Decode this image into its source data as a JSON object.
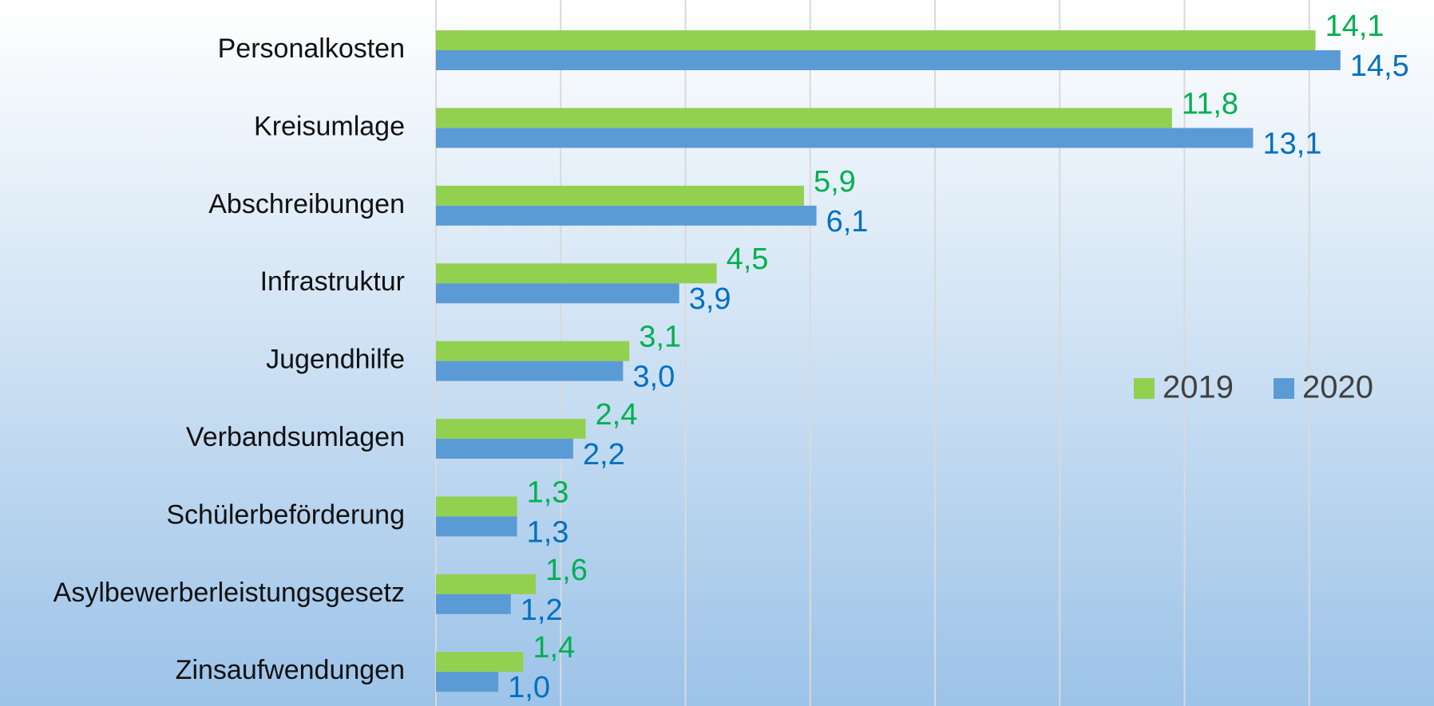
{
  "chart_data": {
    "type": "barh",
    "categories": [
      "Personalkosten",
      "Kreisumlage",
      "Abschreibungen",
      "Infrastruktur",
      "Jugendhilfe",
      "Verbandsumlagen",
      "Schülerbeförderung",
      "Asylbewerberleistungsgesetz",
      "Zinsaufwendungen"
    ],
    "series": [
      {
        "name": "2019",
        "color": "#92d050",
        "label_color": "#00b050",
        "values": [
          14.1,
          11.8,
          5.9,
          4.5,
          3.1,
          2.4,
          1.3,
          1.6,
          1.4
        ],
        "value_labels": [
          "14,1",
          "11,8",
          "5,9",
          "4,5",
          "3,1",
          "2,4",
          "1,3",
          "1,6",
          "1,4"
        ]
      },
      {
        "name": "2020",
        "color": "#5b9bd5",
        "label_color": "#0070c0",
        "values": [
          14.5,
          13.1,
          6.1,
          3.9,
          3.0,
          2.2,
          1.3,
          1.2,
          1.0
        ],
        "value_labels": [
          "14,5",
          "13,1",
          "6,1",
          "3,9",
          "3,0",
          "2,2",
          "1,3",
          "1,2",
          "1,0"
        ]
      }
    ],
    "xlim": [
      0,
      16
    ],
    "xticks": [
      0,
      2,
      4,
      6,
      8,
      10,
      12,
      14
    ],
    "grid": true,
    "legend": "right"
  }
}
